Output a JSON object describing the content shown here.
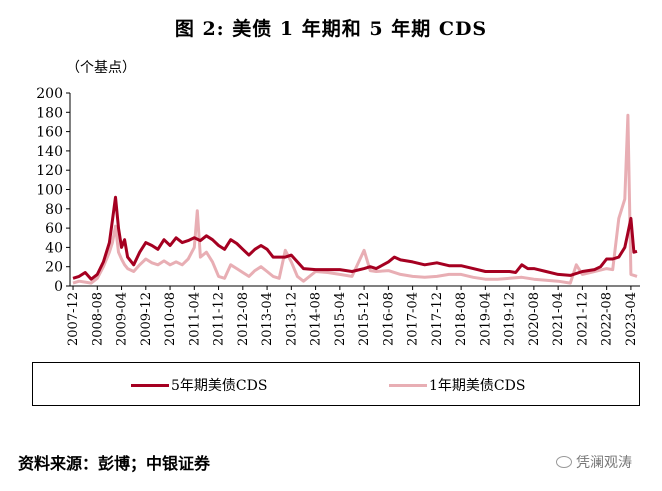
{
  "chart_data": {
    "type": "line",
    "title": "图 2:  美债 1 年期和 5 年期 CDS",
    "unit_label": "（个基点）",
    "ylim": [
      0,
      200
    ],
    "yticks": [
      0,
      20,
      40,
      60,
      80,
      100,
      120,
      140,
      160,
      180,
      200
    ],
    "x_tick_labels": [
      "2007-12",
      "2008-08",
      "2009-04",
      "2009-12",
      "2010-08",
      "2011-04",
      "2011-12",
      "2012-08",
      "2013-04",
      "2013-12",
      "2014-08",
      "2015-04",
      "2015-12",
      "2016-08",
      "2017-04",
      "2017-12",
      "2018-08",
      "2019-04",
      "2019-12",
      "2020-08",
      "2021-04",
      "2021-12",
      "2022-08",
      "2023-04"
    ],
    "legend_position": "bottom",
    "grid": false,
    "series": [
      {
        "name": "5年期美债CDS",
        "color": "#A50021",
        "points": [
          [
            "2007-12",
            8
          ],
          [
            "2008-02",
            10
          ],
          [
            "2008-04",
            14
          ],
          [
            "2008-06",
            7
          ],
          [
            "2008-08",
            12
          ],
          [
            "2008-10",
            25
          ],
          [
            "2008-12",
            45
          ],
          [
            "2009-01",
            68
          ],
          [
            "2009-02",
            92
          ],
          [
            "2009-03",
            60
          ],
          [
            "2009-04",
            40
          ],
          [
            "2009-05",
            48
          ],
          [
            "2009-06",
            30
          ],
          [
            "2009-08",
            22
          ],
          [
            "2009-10",
            35
          ],
          [
            "2009-12",
            45
          ],
          [
            "2010-02",
            42
          ],
          [
            "2010-04",
            38
          ],
          [
            "2010-06",
            48
          ],
          [
            "2010-08",
            42
          ],
          [
            "2010-10",
            50
          ],
          [
            "2010-12",
            45
          ],
          [
            "2011-02",
            47
          ],
          [
            "2011-04",
            50
          ],
          [
            "2011-06",
            47
          ],
          [
            "2011-08",
            52
          ],
          [
            "2011-10",
            48
          ],
          [
            "2011-12",
            42
          ],
          [
            "2012-02",
            38
          ],
          [
            "2012-04",
            48
          ],
          [
            "2012-06",
            44
          ],
          [
            "2012-08",
            38
          ],
          [
            "2012-10",
            32
          ],
          [
            "2012-12",
            38
          ],
          [
            "2013-02",
            42
          ],
          [
            "2013-04",
            38
          ],
          [
            "2013-06",
            30
          ],
          [
            "2013-08",
            30
          ],
          [
            "2013-10",
            30
          ],
          [
            "2013-12",
            32
          ],
          [
            "2014-02",
            25
          ],
          [
            "2014-04",
            18
          ],
          [
            "2014-08",
            17
          ],
          [
            "2014-12",
            17
          ],
          [
            "2015-04",
            17
          ],
          [
            "2015-08",
            15
          ],
          [
            "2015-12",
            18
          ],
          [
            "2016-02",
            20
          ],
          [
            "2016-04",
            18
          ],
          [
            "2016-08",
            25
          ],
          [
            "2016-10",
            30
          ],
          [
            "2016-12",
            27
          ],
          [
            "2017-04",
            25
          ],
          [
            "2017-08",
            22
          ],
          [
            "2017-12",
            24
          ],
          [
            "2018-04",
            21
          ],
          [
            "2018-08",
            21
          ],
          [
            "2018-12",
            18
          ],
          [
            "2019-04",
            15
          ],
          [
            "2019-08",
            15
          ],
          [
            "2019-12",
            15
          ],
          [
            "2020-02",
            14
          ],
          [
            "2020-04",
            22
          ],
          [
            "2020-06",
            18
          ],
          [
            "2020-08",
            18
          ],
          [
            "2020-12",
            15
          ],
          [
            "2021-04",
            12
          ],
          [
            "2021-08",
            11
          ],
          [
            "2021-12",
            15
          ],
          [
            "2022-04",
            17
          ],
          [
            "2022-06",
            20
          ],
          [
            "2022-08",
            28
          ],
          [
            "2022-10",
            28
          ],
          [
            "2022-12",
            30
          ],
          [
            "2023-02",
            40
          ],
          [
            "2023-03",
            55
          ],
          [
            "2023-04",
            70
          ],
          [
            "2023-05",
            35
          ],
          [
            "2023-06",
            36
          ]
        ]
      },
      {
        "name": "1年期美债CDS",
        "color": "#E8AEB4",
        "points": [
          [
            "2007-12",
            3
          ],
          [
            "2008-02",
            5
          ],
          [
            "2008-04",
            4
          ],
          [
            "2008-06",
            3
          ],
          [
            "2008-08",
            8
          ],
          [
            "2008-10",
            20
          ],
          [
            "2008-12",
            35
          ],
          [
            "2009-01",
            45
          ],
          [
            "2009-02",
            62
          ],
          [
            "2009-03",
            35
          ],
          [
            "2009-04",
            28
          ],
          [
            "2009-05",
            22
          ],
          [
            "2009-06",
            18
          ],
          [
            "2009-08",
            15
          ],
          [
            "2009-10",
            22
          ],
          [
            "2009-12",
            28
          ],
          [
            "2010-02",
            24
          ],
          [
            "2010-04",
            22
          ],
          [
            "2010-06",
            26
          ],
          [
            "2010-08",
            22
          ],
          [
            "2010-10",
            25
          ],
          [
            "2010-12",
            22
          ],
          [
            "2011-02",
            28
          ],
          [
            "2011-04",
            40
          ],
          [
            "2011-05",
            78
          ],
          [
            "2011-06",
            30
          ],
          [
            "2011-08",
            35
          ],
          [
            "2011-10",
            25
          ],
          [
            "2011-12",
            10
          ],
          [
            "2012-02",
            8
          ],
          [
            "2012-04",
            22
          ],
          [
            "2012-06",
            18
          ],
          [
            "2012-08",
            14
          ],
          [
            "2012-10",
            10
          ],
          [
            "2012-12",
            16
          ],
          [
            "2013-02",
            20
          ],
          [
            "2013-04",
            15
          ],
          [
            "2013-06",
            10
          ],
          [
            "2013-08",
            8
          ],
          [
            "2013-10",
            37
          ],
          [
            "2013-12",
            25
          ],
          [
            "2014-02",
            10
          ],
          [
            "2014-04",
            5
          ],
          [
            "2014-08",
            15
          ],
          [
            "2014-12",
            14
          ],
          [
            "2015-04",
            12
          ],
          [
            "2015-08",
            10
          ],
          [
            "2015-12",
            37
          ],
          [
            "2016-02",
            16
          ],
          [
            "2016-04",
            15
          ],
          [
            "2016-08",
            16
          ],
          [
            "2016-12",
            12
          ],
          [
            "2017-04",
            10
          ],
          [
            "2017-08",
            9
          ],
          [
            "2017-12",
            10
          ],
          [
            "2018-04",
            12
          ],
          [
            "2018-08",
            12
          ],
          [
            "2018-12",
            9
          ],
          [
            "2019-04",
            7
          ],
          [
            "2019-08",
            7
          ],
          [
            "2019-12",
            8
          ],
          [
            "2020-04",
            9
          ],
          [
            "2020-08",
            7
          ],
          [
            "2020-12",
            6
          ],
          [
            "2021-04",
            5
          ],
          [
            "2021-08",
            3
          ],
          [
            "2021-10",
            22
          ],
          [
            "2021-12",
            12
          ],
          [
            "2022-04",
            15
          ],
          [
            "2022-08",
            18
          ],
          [
            "2022-10",
            17
          ],
          [
            "2022-12",
            70
          ],
          [
            "2023-02",
            90
          ],
          [
            "2023-03",
            177
          ],
          [
            "2023-04",
            12
          ],
          [
            "2023-06",
            10
          ]
        ]
      }
    ]
  },
  "source": "资料来源：彭博；中银证券",
  "watermark": "凭澜观涛"
}
